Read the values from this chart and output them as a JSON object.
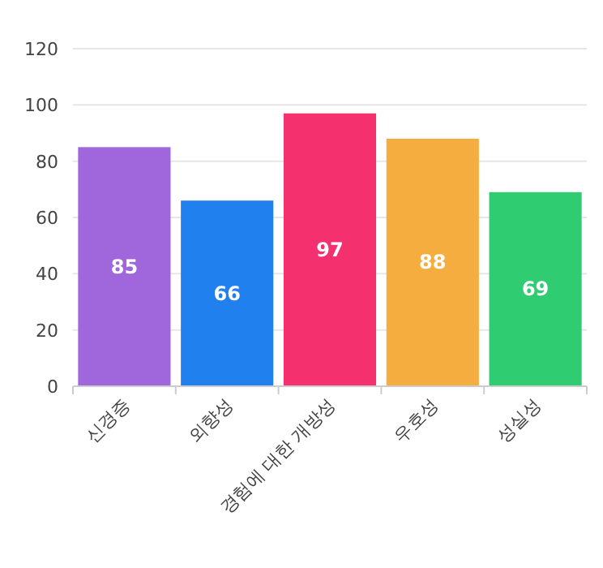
{
  "chart_data": {
    "type": "bar",
    "categories": [
      "신경증",
      "외향성",
      "경험에 대한 개방성",
      "우호성",
      "성실성"
    ],
    "values": [
      85,
      66,
      97,
      88,
      69
    ],
    "colors": [
      "#a066dc",
      "#1f80ee",
      "#f5306e",
      "#f5ad3f",
      "#30cc72"
    ],
    "ylim": [
      0,
      120
    ],
    "yticks": [
      0,
      20,
      40,
      60,
      80,
      100,
      120
    ],
    "grid": "y",
    "data_labels": true
  }
}
